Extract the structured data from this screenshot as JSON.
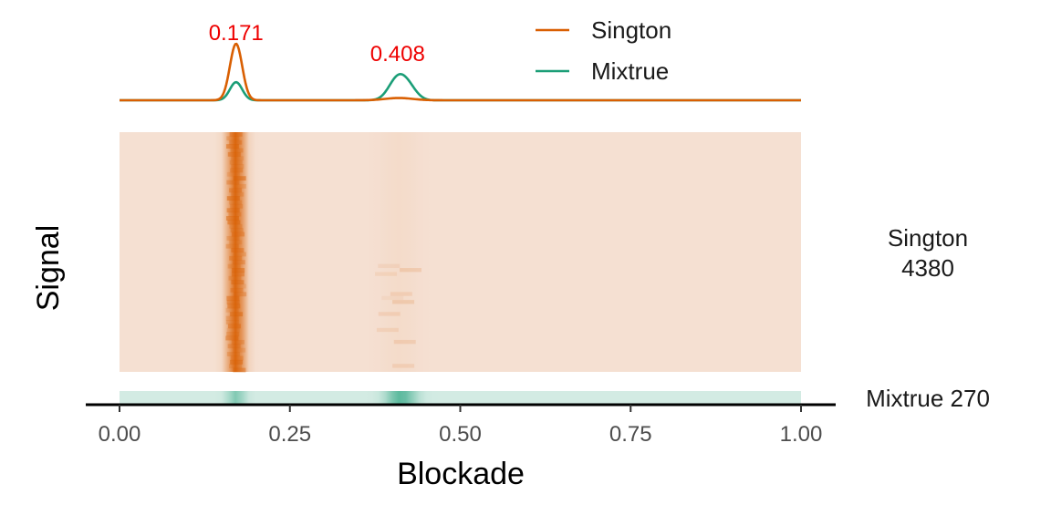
{
  "chart_data": {
    "type": "heatmap",
    "xlabel": "Blockade",
    "ylabel": "Signal",
    "xlim": [
      0,
      1
    ],
    "x_ticks": [
      "0.00",
      "0.25",
      "0.50",
      "0.75",
      "1.00"
    ],
    "x_tick_values": [
      0,
      0.25,
      0.5,
      0.75,
      1.0
    ],
    "colors": {
      "Singalton": "#D95F02",
      "Mixtrue": "#1B9E77",
      "heat_low_singleton": "#F5E0D2",
      "heat_low_mixtrue": "#D3EBE3",
      "peak_label": "#EE0000"
    },
    "density": {
      "legend_position": "top-right",
      "series": [
        {
          "name": "Sington",
          "color": "#D95F02",
          "peaks": [
            {
              "x": 0.171,
              "height": 1.0,
              "width": 0.009
            },
            {
              "x": 0.41,
              "height": 0.04,
              "width": 0.02
            }
          ]
        },
        {
          "name": "Mixtrue",
          "color": "#1B9E77",
          "peaks": [
            {
              "x": 0.171,
              "height": 0.32,
              "width": 0.009
            },
            {
              "x": 0.408,
              "height": 0.38,
              "width": 0.013
            },
            {
              "x": 0.425,
              "height": 0.18,
              "width": 0.012
            }
          ]
        }
      ],
      "peak_labels": [
        {
          "x": 0.171,
          "text": "0.171"
        },
        {
          "x": 0.408,
          "text": "0.408"
        }
      ]
    },
    "facets": [
      {
        "line1": "Sington",
        "line2": "4380",
        "color": "#D95F02",
        "count": 4380
      },
      {
        "line1": "Mixtrue 270",
        "line2": "",
        "color": "#1B9E77",
        "count": 270
      }
    ]
  }
}
